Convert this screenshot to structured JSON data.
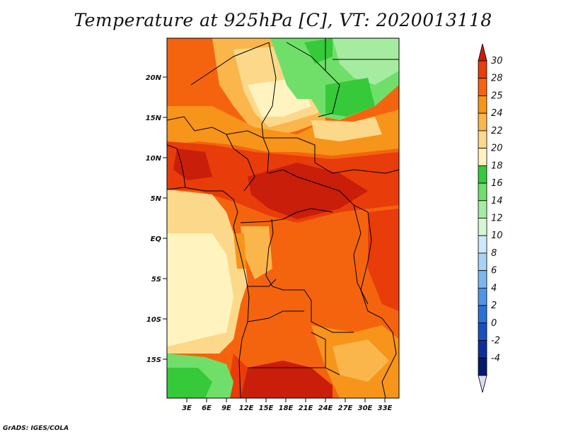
{
  "title": "Temperature at 925hPa [C], VT: 2020013118",
  "credit": "GrADS: IGES/COLA",
  "lat_ticks": [
    "20N",
    "15N",
    "10N",
    "5N",
    "EQ",
    "5S",
    "10S",
    "15S"
  ],
  "lon_ticks": [
    "3E",
    "6E",
    "9E",
    "12E",
    "15E",
    "18E",
    "21E",
    "24E",
    "27E",
    "30E",
    "33E"
  ],
  "colorbar": {
    "labels": [
      "30",
      "28",
      "25",
      "24",
      "22",
      "20",
      "18",
      "16",
      "14",
      "12",
      "10",
      "8",
      "6",
      "4",
      "2",
      "0",
      "-2",
      "-4"
    ],
    "colors": [
      "#c81e0a",
      "#e83c0a",
      "#f4640e",
      "#f7941a",
      "#fab64a",
      "#fcd98a",
      "#fff4c0",
      "#36c93a",
      "#6fdf6a",
      "#a6eca0",
      "#d6f7d2",
      "#cfe8fb",
      "#a8d3f5",
      "#7cb6ee",
      "#4e95e3",
      "#2a72d6",
      "#1a4fbe",
      "#0c2f9a",
      "#051a6e",
      "#dcdcf2"
    ]
  },
  "map": {
    "colors": {
      "hot": "#c81e0a",
      "warm_red": "#e83c0a",
      "orange": "#f4640e",
      "light_orange": "#f7941a",
      "tan": "#fab64a",
      "pale": "#fcd98a",
      "cream": "#fff4c0",
      "green": "#36c93a",
      "light_green": "#6fdf6a",
      "pale_green": "#a6eca0"
    }
  }
}
